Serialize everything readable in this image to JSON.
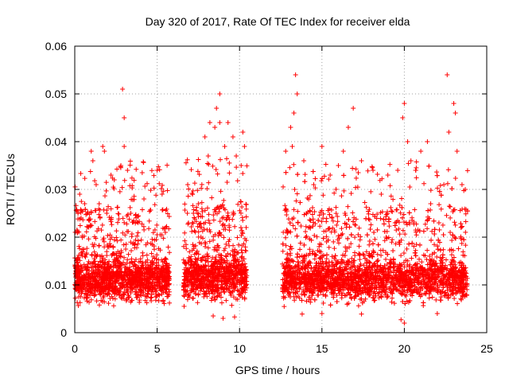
{
  "chart_data": {
    "type": "scatter",
    "title": "Day 320 of 2017, Rate Of TEC Index for receiver elda",
    "xlabel": "GPS time / hours",
    "ylabel": "ROTI / TECUs",
    "xlim": [
      0,
      25
    ],
    "ylim": [
      0,
      0.06
    ],
    "x_ticks": [
      0,
      5,
      10,
      15,
      20,
      25
    ],
    "y_ticks": [
      0,
      0.01,
      0.02,
      0.03,
      0.04,
      0.05,
      0.06
    ],
    "x_tick_labels": [
      "0",
      "5",
      "10",
      "15",
      "20",
      "25"
    ],
    "y_tick_labels": [
      "0",
      "0.01",
      "0.02",
      "0.03",
      "0.04",
      "0.05",
      "0.06"
    ],
    "grid": true,
    "marker": "plus",
    "color": "#ff0000",
    "data_segments": [
      {
        "x_start": 0.0,
        "x_end": 5.75,
        "typical_range": [
          0.005,
          0.016
        ]
      },
      {
        "x_start": 6.6,
        "x_end": 10.45,
        "typical_range": [
          0.005,
          0.017
        ]
      },
      {
        "x_start": 12.6,
        "x_end": 23.85,
        "typical_range": [
          0.005,
          0.016
        ]
      }
    ],
    "series": [
      {
        "points": [
          [
            0.3,
            0.029
          ],
          [
            0.6,
            0.027
          ],
          [
            1.0,
            0.038
          ],
          [
            1.1,
            0.036
          ],
          [
            1.3,
            0.031
          ],
          [
            1.7,
            0.039
          ],
          [
            1.8,
            0.038
          ],
          [
            2.2,
            0.033
          ],
          [
            2.4,
            0.032
          ],
          [
            2.8,
            0.035
          ],
          [
            2.9,
            0.051
          ],
          [
            3.0,
            0.045
          ],
          [
            3.0,
            0.039
          ],
          [
            3.2,
            0.034
          ],
          [
            3.4,
            0.025
          ],
          [
            4.2,
            0.028
          ],
          [
            5.0,
            0.034
          ],
          [
            5.3,
            0.029
          ],
          [
            5.5,
            0.021
          ],
          [
            6.9,
            0.023
          ],
          [
            7.2,
            0.025
          ],
          [
            7.5,
            0.027
          ],
          [
            7.9,
            0.041
          ],
          [
            8.1,
            0.037
          ],
          [
            8.2,
            0.044
          ],
          [
            8.5,
            0.043
          ],
          [
            8.6,
            0.047
          ],
          [
            8.8,
            0.05
          ],
          [
            8.8,
            0.044
          ],
          [
            9.1,
            0.039
          ],
          [
            9.3,
            0.044
          ],
          [
            9.6,
            0.041
          ],
          [
            9.8,
            0.037
          ],
          [
            10.1,
            0.035
          ],
          [
            10.2,
            0.042
          ],
          [
            10.3,
            0.039
          ],
          [
            12.8,
            0.038
          ],
          [
            13.1,
            0.043
          ],
          [
            13.2,
            0.039
          ],
          [
            13.3,
            0.046
          ],
          [
            13.4,
            0.054
          ],
          [
            13.5,
            0.05
          ],
          [
            13.9,
            0.036
          ],
          [
            14.5,
            0.031
          ],
          [
            15.0,
            0.039
          ],
          [
            15.5,
            0.033
          ],
          [
            16.0,
            0.035
          ],
          [
            16.3,
            0.038
          ],
          [
            16.6,
            0.043
          ],
          [
            16.9,
            0.047
          ],
          [
            17.4,
            0.036
          ],
          [
            18.1,
            0.034
          ],
          [
            18.6,
            0.029
          ],
          [
            19.0,
            0.033
          ],
          [
            19.6,
            0.034
          ],
          [
            19.9,
            0.045
          ],
          [
            20.0,
            0.048
          ],
          [
            20.2,
            0.04
          ],
          [
            20.4,
            0.036
          ],
          [
            21.0,
            0.038
          ],
          [
            21.4,
            0.04
          ],
          [
            21.6,
            0.027
          ],
          [
            22.1,
            0.023
          ],
          [
            22.4,
            0.031
          ],
          [
            22.6,
            0.054
          ],
          [
            22.7,
            0.042
          ],
          [
            23.0,
            0.048
          ],
          [
            23.1,
            0.046
          ],
          [
            23.2,
            0.038
          ],
          [
            23.5,
            0.031
          ],
          [
            23.7,
            0.03
          ],
          [
            3.3,
            0.0075
          ],
          [
            8.4,
            0.0035
          ],
          [
            9.0,
            0.003
          ],
          [
            9.7,
            0.0033
          ],
          [
            13.8,
            0.0039
          ],
          [
            17.4,
            0.0039
          ],
          [
            19.8,
            0.0027
          ],
          [
            20.0,
            0.002
          ],
          [
            22.0,
            0.004
          ],
          [
            15.0,
            0.004
          ]
        ]
      }
    ]
  }
}
